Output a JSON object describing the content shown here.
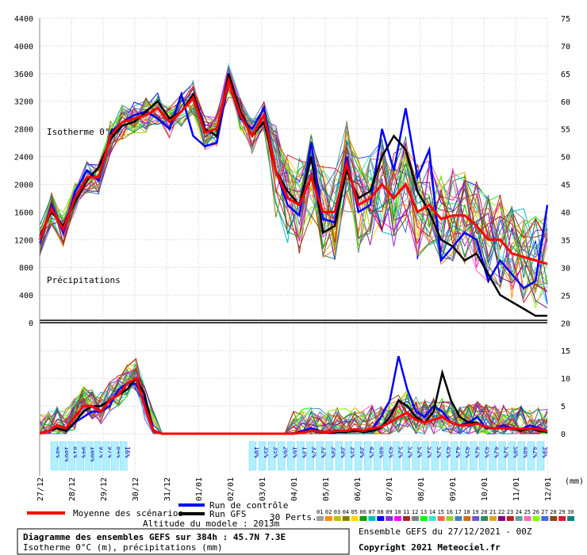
{
  "chart_data": {
    "type": "line",
    "title": "Diagramme des ensembles GEFS sur 384h : 45.7N 7.3E",
    "subtitle": "Isotherme 0°C (m), précipitations (mm)",
    "run_label": "Ensemble GEFS du 27/12/2021 - 00Z",
    "copyright": "Copyright 2021 Meteociel.fr",
    "altitude_label": "Altitude du modele : 2013m",
    "panel_labels": {
      "upper": "Isotherme 0°C",
      "lower": "Précipitations"
    },
    "x_unit": "(mm)",
    "x_dates": [
      "27/12",
      "28/12",
      "29/12",
      "30/12",
      "31/12",
      "01/01",
      "02/01",
      "03/01",
      "04/01",
      "05/01",
      "06/01",
      "07/01",
      "08/01",
      "09/01",
      "10/01",
      "11/01",
      "12/01"
    ],
    "left_axis": {
      "ticks": [
        0,
        400,
        800,
        1200,
        1600,
        2000,
        2400,
        2800,
        3200,
        3600,
        4000,
        4400
      ],
      "ylim": [
        0,
        4400
      ],
      "unit": "m"
    },
    "right_axis": {
      "ticks": [
        0,
        5,
        10,
        15,
        20,
        25,
        30,
        35,
        40,
        45,
        50,
        55,
        60,
        65,
        70,
        75
      ],
      "ylim": [
        0,
        75
      ],
      "unit": "mm"
    },
    "legend": {
      "mean": "Moyenne des scénarios",
      "control": "Run de contrôle",
      "gfs": "Run GFS",
      "perts": "30 Perts.",
      "pert_numbers": [
        "01",
        "02",
        "03",
        "04",
        "05",
        "06",
        "07",
        "08",
        "09",
        "10",
        "11",
        "12",
        "13",
        "14",
        "15",
        "16",
        "17",
        "18",
        "19",
        "20",
        "21",
        "22",
        "23",
        "24",
        "25",
        "26",
        "27",
        "28",
        "29",
        "30"
      ],
      "pert_colors": [
        "#a0a0a0",
        "#ff8c00",
        "#c0c000",
        "#808000",
        "#ffd700",
        "#00a000",
        "#00c0c0",
        "#0000ff",
        "#8a2be2",
        "#ff00ff",
        "#a52a2a",
        "#808080",
        "#00ff00",
        "#40e0d0",
        "#ff6347",
        "#9acd32",
        "#4682b4",
        "#d2691e",
        "#6a5acd",
        "#2e8b57",
        "#daa520",
        "#800080",
        "#b22222",
        "#5f9ea0",
        "#ff69b4",
        "#7fff00",
        "#4169e1",
        "#8b4513",
        "#dc143c",
        "#008080"
      ]
    },
    "series": [
      {
        "name": "Moyenne des scénarios",
        "color": "#ff0000",
        "iso0": [
          1200,
          1650,
          1350,
          1800,
          2100,
          2100,
          2700,
          2900,
          2950,
          3000,
          3100,
          2900,
          3050,
          3250,
          2750,
          2800,
          3500,
          3000,
          2700,
          3000,
          2200,
          1800,
          1700,
          2100,
          1600,
          1600,
          2300,
          1700,
          1800,
          2000,
          1800,
          2000,
          1600,
          1700,
          1500,
          1550,
          1550,
          1400,
          1200,
          1200,
          1000,
          950,
          900,
          850
        ],
        "precip": [
          0,
          0.5,
          1.5,
          1,
          3,
          5,
          5,
          4,
          6,
          7,
          9,
          10,
          5,
          0.5,
          0,
          0,
          0,
          0,
          0,
          0,
          0,
          0,
          0,
          0,
          0,
          0,
          0,
          0,
          0,
          0,
          0.2,
          0.5,
          0.4,
          0.3,
          0.5,
          0.5,
          0.8,
          0.5,
          1,
          1.2,
          2,
          3,
          3.8,
          2.5,
          2,
          2.5,
          3,
          2,
          1.5,
          1.5,
          1.8,
          1.2,
          1,
          1,
          1,
          0.8,
          1,
          0.8,
          0.5
        ]
      },
      {
        "name": "Run de contrôle",
        "color": "#0000ff",
        "iso0": [
          1150,
          1700,
          1300,
          1900,
          2200,
          2050,
          2750,
          2900,
          3000,
          3050,
          2950,
          2800,
          3300,
          2700,
          2550,
          2600,
          3500,
          2950,
          2800,
          3100,
          2200,
          1700,
          1550,
          2600,
          1500,
          1450,
          2400,
          1600,
          1700,
          2800,
          2200,
          3100,
          2100,
          2500,
          900,
          1100,
          1300,
          1200,
          600,
          900,
          700,
          500,
          600,
          1700
        ],
        "precip": [
          0,
          0.5,
          1,
          0.5,
          2,
          3,
          4,
          4,
          5,
          8,
          9,
          9,
          6,
          0.5,
          0,
          0,
          0,
          0,
          0,
          0,
          0,
          0,
          0,
          0,
          0,
          0,
          0,
          0,
          0,
          0,
          0.5,
          1,
          0.5,
          0.3,
          0.5,
          0.5,
          0.5,
          0.3,
          1,
          3,
          6,
          14,
          8,
          4,
          3,
          5,
          4,
          2,
          1.5,
          2,
          3,
          1,
          1,
          1.5,
          1,
          0.8,
          1.5,
          1,
          0.5
        ]
      },
      {
        "name": "Run GFS",
        "color": "#000000",
        "iso0": [
          1250,
          1600,
          1400,
          1750,
          2050,
          2250,
          2650,
          2850,
          2900,
          3050,
          3200,
          2950,
          3050,
          3300,
          2800,
          2700,
          3600,
          3050,
          2700,
          2900,
          2200,
          1900,
          1700,
          2400,
          1300,
          1400,
          2200,
          1800,
          1900,
          2400,
          2700,
          2500,
          1900,
          1600,
          1200,
          1100,
          900,
          1000,
          700,
          400,
          300,
          200,
          100,
          100
        ],
        "precip": [
          0,
          0.5,
          1,
          0.5,
          2,
          4,
          5,
          5,
          6,
          7,
          8,
          10,
          7,
          0.5,
          0,
          0,
          0,
          0,
          0,
          0,
          0,
          0,
          0,
          0,
          0,
          0,
          0,
          0,
          0,
          0,
          0.3,
          0.5,
          0.3,
          0.2,
          0.3,
          0.3,
          0.5,
          0.3,
          0.5,
          1,
          3,
          6,
          5,
          3,
          2,
          4,
          11,
          6,
          3,
          2,
          2,
          1,
          1,
          1,
          1,
          0.5,
          1,
          0.5,
          0.3
        ]
      }
    ],
    "precip_probabilities": {
      "early": [
        "48%",
        "100%",
        "81%",
        "94%",
        "100%",
        "97%",
        "97%",
        "84%",
        "16%"
      ],
      "late": [
        "10%",
        "35%",
        "35%",
        "26%",
        "16%",
        "13%",
        "32%",
        "32%",
        "39%",
        "39%",
        "35%",
        "39%",
        "42%",
        "48%",
        "45%",
        "52%",
        "52%",
        "52%",
        "52%",
        "52%",
        "45%",
        "42%",
        "45%",
        "42%",
        "45%",
        "42%",
        "52%",
        "58%",
        "48%",
        "42%",
        "39%"
      ]
    }
  }
}
